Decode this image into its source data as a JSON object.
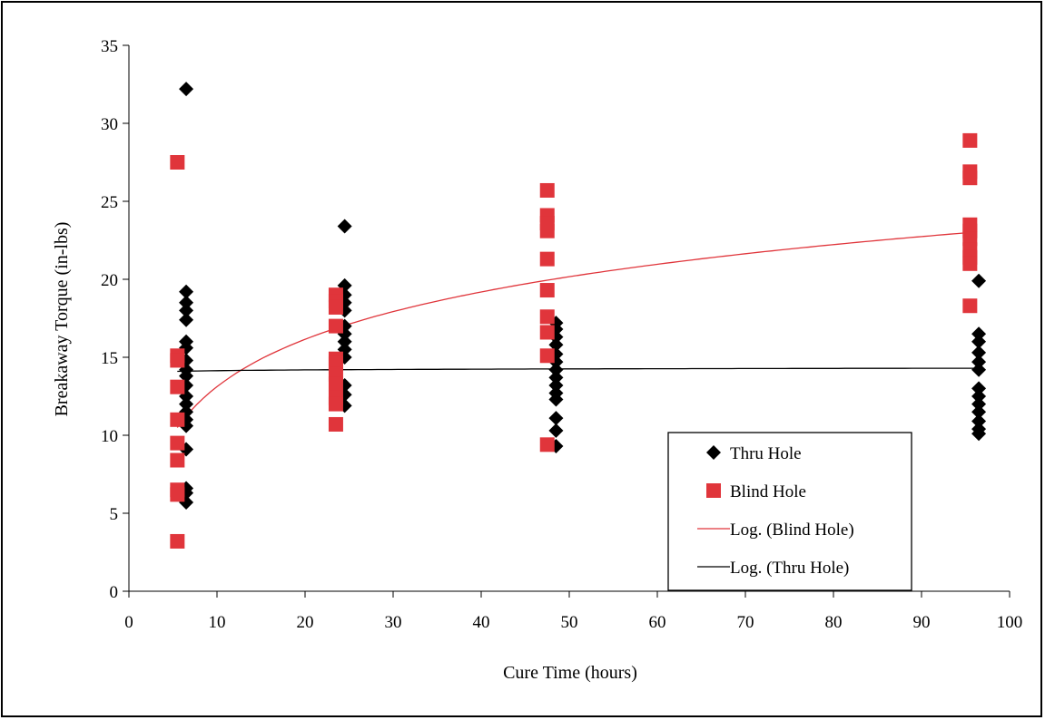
{
  "chart_data": {
    "type": "scatter",
    "xlabel": "Cure Time (hours)",
    "ylabel": "Breakaway Torque (in-lbs)",
    "xlim": [
      0,
      100
    ],
    "ylim": [
      0,
      35
    ],
    "x_ticks": [
      0,
      10,
      20,
      30,
      40,
      50,
      60,
      70,
      80,
      90,
      100
    ],
    "y_ticks": [
      0,
      5,
      10,
      15,
      20,
      25,
      30,
      35
    ],
    "grid": false,
    "legend_position": "bottom-right",
    "series": [
      {
        "name": "Thru Hole",
        "marker": "diamond",
        "color": "#000000",
        "points": [
          [
            6.5,
            32.2
          ],
          [
            6.5,
            19.2
          ],
          [
            6.5,
            18.5
          ],
          [
            6.5,
            18.0
          ],
          [
            6.5,
            17.4
          ],
          [
            6.5,
            16.0
          ],
          [
            6.5,
            15.6
          ],
          [
            6.5,
            14.8
          ],
          [
            6.5,
            14.2
          ],
          [
            6.5,
            13.8
          ],
          [
            6.5,
            13.2
          ],
          [
            6.5,
            12.5
          ],
          [
            6.5,
            12.0
          ],
          [
            6.5,
            11.5
          ],
          [
            6.5,
            11.0
          ],
          [
            6.5,
            10.6
          ],
          [
            6.5,
            9.1
          ],
          [
            6.5,
            6.6
          ],
          [
            6.5,
            6.3
          ],
          [
            6.5,
            5.7
          ],
          [
            24.5,
            23.4
          ],
          [
            24.5,
            19.6
          ],
          [
            24.5,
            19.0
          ],
          [
            24.5,
            18.5
          ],
          [
            24.5,
            18.0
          ],
          [
            24.5,
            17.0
          ],
          [
            24.5,
            16.5
          ],
          [
            24.5,
            16.0
          ],
          [
            24.5,
            15.5
          ],
          [
            24.5,
            15.0
          ],
          [
            24.5,
            13.2
          ],
          [
            24.5,
            12.6
          ],
          [
            24.5,
            11.9
          ],
          [
            48.5,
            17.2
          ],
          [
            48.5,
            16.8
          ],
          [
            48.5,
            16.3
          ],
          [
            48.5,
            15.8
          ],
          [
            48.5,
            15.2
          ],
          [
            48.5,
            14.7
          ],
          [
            48.5,
            14.2
          ],
          [
            48.5,
            13.7
          ],
          [
            48.5,
            13.2
          ],
          [
            48.5,
            12.7
          ],
          [
            48.5,
            12.3
          ],
          [
            48.5,
            11.1
          ],
          [
            48.5,
            10.3
          ],
          [
            48.5,
            9.3
          ],
          [
            96.5,
            19.9
          ],
          [
            96.5,
            16.5
          ],
          [
            96.5,
            16.0
          ],
          [
            96.5,
            15.3
          ],
          [
            96.5,
            14.7
          ],
          [
            96.5,
            14.2
          ],
          [
            96.5,
            13.0
          ],
          [
            96.5,
            12.5
          ],
          [
            96.5,
            12.0
          ],
          [
            96.5,
            11.5
          ],
          [
            96.5,
            10.9
          ],
          [
            96.5,
            10.4
          ],
          [
            96.5,
            10.1
          ]
        ]
      },
      {
        "name": "Blind Hole",
        "marker": "square",
        "color": "#e0353b",
        "points": [
          [
            5.5,
            27.5
          ],
          [
            5.5,
            15.1
          ],
          [
            5.5,
            14.8
          ],
          [
            5.5,
            13.1
          ],
          [
            5.5,
            11.0
          ],
          [
            5.5,
            9.5
          ],
          [
            5.5,
            8.4
          ],
          [
            5.5,
            6.5
          ],
          [
            5.5,
            6.2
          ],
          [
            5.5,
            3.2
          ],
          [
            23.5,
            19.0
          ],
          [
            23.5,
            18.6
          ],
          [
            23.5,
            18.2
          ],
          [
            23.5,
            17.0
          ],
          [
            23.5,
            14.9
          ],
          [
            23.5,
            14.6
          ],
          [
            23.5,
            13.9
          ],
          [
            23.5,
            13.3
          ],
          [
            23.5,
            12.4
          ],
          [
            23.5,
            12.0
          ],
          [
            23.5,
            10.7
          ],
          [
            47.5,
            25.7
          ],
          [
            47.5,
            24.1
          ],
          [
            47.5,
            23.6
          ],
          [
            47.5,
            23.1
          ],
          [
            47.5,
            21.3
          ],
          [
            47.5,
            19.3
          ],
          [
            47.5,
            17.6
          ],
          [
            47.5,
            16.6
          ],
          [
            47.5,
            15.1
          ],
          [
            47.5,
            9.4
          ],
          [
            95.5,
            28.9
          ],
          [
            95.5,
            26.9
          ],
          [
            95.5,
            26.5
          ],
          [
            95.5,
            23.5
          ],
          [
            95.5,
            23.1
          ],
          [
            95.5,
            22.6
          ],
          [
            95.5,
            21.9
          ],
          [
            95.5,
            21.4
          ],
          [
            95.5,
            21.0
          ],
          [
            95.5,
            18.3
          ]
        ]
      }
    ],
    "trendlines": [
      {
        "name": "Log. (Blind Hole)",
        "type": "logarithmic",
        "color": "#e0353b",
        "x_range": [
          5.5,
          95.5
        ],
        "a": 4.38,
        "b": 3.03
      },
      {
        "name": "Log. (Thru Hole)",
        "type": "logarithmic",
        "color": "#000000",
        "x_range": [
          5.5,
          96.5
        ],
        "a": 0.07,
        "b": 13.98
      }
    ],
    "legend": [
      {
        "label": "Thru Hole",
        "kind": "diamond",
        "color": "#000000"
      },
      {
        "label": "Blind Hole",
        "kind": "square",
        "color": "#e0353b"
      },
      {
        "label": "Log. (Blind Hole)",
        "kind": "line",
        "color": "#e0353b"
      },
      {
        "label": "Log. (Thru Hole)",
        "kind": "line",
        "color": "#000000"
      }
    ]
  }
}
